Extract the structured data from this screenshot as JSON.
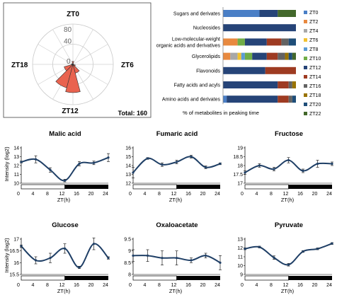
{
  "chart_data": [
    {
      "type": "polar-bar",
      "labels": {
        "top": "ZT0",
        "right": "ZT6",
        "bottom": "ZT12",
        "left": "ZT18"
      },
      "ring_ticks": [
        "0",
        "40",
        "80"
      ],
      "rmax": 80,
      "total_label": "Total: 160",
      "categories": [
        "ZT0",
        "ZT2",
        "ZT4",
        "ZT6",
        "ZT8",
        "ZT10",
        "ZT12",
        "ZT14",
        "ZT16",
        "ZT18",
        "ZT20",
        "ZT22"
      ],
      "values": [
        6,
        1,
        1,
        1,
        5,
        18,
        56,
        48,
        18,
        3,
        2,
        1
      ],
      "color": "#e9634f"
    },
    {
      "type": "stacked-bar-horizontal",
      "xlabel": "% of metabolites in peaking time",
      "categories": [
        "Sugars and derivates",
        "Nucleosides",
        "Low-molecular-weight organic acids and derivatives",
        "Glycerolipids",
        "Flavonoids",
        "Fatty acids and acyls",
        "Amino acids and derivates"
      ],
      "category_lines": [
        [
          "Sugars and derivates"
        ],
        [
          "Nucleosides"
        ],
        [
          "Low-molecular-weight",
          "organic acids and derivatives"
        ],
        [
          "Glycerolipids"
        ],
        [
          "Flavonoids"
        ],
        [
          "Fatty acids and acyls"
        ],
        [
          "Amino acids and derivates"
        ]
      ],
      "series_names": [
        "ZT0",
        "ZT2",
        "ZT4",
        "ZT6",
        "ZT8",
        "ZT10",
        "ZT12",
        "ZT14",
        "ZT16",
        "ZT18",
        "ZT20",
        "ZT22"
      ],
      "colors": [
        "#4a7fc6",
        "#e8893f",
        "#a8a8a8",
        "#f2c231",
        "#5b9bd5",
        "#70ad47",
        "#264478",
        "#9e3b22",
        "#636363",
        "#997300",
        "#1f4e79",
        "#43682b"
      ],
      "values": [
        [
          50,
          0,
          0,
          0,
          0,
          0,
          25,
          0,
          0,
          0,
          0,
          25
        ],
        [
          0,
          0,
          0,
          0,
          0,
          0,
          100,
          0,
          0,
          0,
          0,
          0
        ],
        [
          0,
          20,
          0,
          0,
          0,
          10,
          30,
          20,
          10,
          0,
          10,
          0
        ],
        [
          0,
          10,
          10,
          5,
          5,
          10,
          20,
          15,
          10,
          5,
          5,
          5
        ],
        [
          0,
          0,
          0,
          0,
          0,
          0,
          58,
          42,
          0,
          0,
          0,
          0
        ],
        [
          0,
          0,
          0,
          0,
          0,
          0,
          75,
          15,
          5,
          5,
          0,
          0
        ],
        [
          5,
          0,
          0,
          0,
          0,
          0,
          70,
          15,
          5,
          0,
          5,
          0
        ]
      ]
    },
    {
      "type": "line",
      "title": "Malic acid",
      "ylabel": "Intensity (log2)",
      "xlabel": "ZT(h)",
      "x": [
        0,
        4,
        8,
        12,
        16,
        20,
        24
      ],
      "y": [
        12.4,
        12.7,
        11.5,
        10.3,
        12.2,
        12.3,
        12.9
      ],
      "err": [
        0.1,
        0.4,
        0.25,
        0.15,
        0.25,
        0.2,
        0.45
      ],
      "ylim": [
        10,
        14
      ],
      "yticks": [
        "10",
        "11",
        "12",
        "13",
        "14"
      ],
      "xticks": [
        "0",
        "4",
        "8",
        "12",
        "16",
        "20",
        "24"
      ]
    },
    {
      "type": "line",
      "title": "Fumaric acid",
      "ylabel": "",
      "xlabel": "ZT(h)",
      "x": [
        0,
        4,
        8,
        12,
        16,
        20,
        24
      ],
      "y": [
        13.2,
        14.8,
        14.1,
        14.4,
        15.0,
        13.8,
        14.2
      ],
      "err": [
        0.6,
        0.1,
        0.2,
        0.2,
        0.15,
        0.15,
        0.1
      ],
      "ylim": [
        12,
        16
      ],
      "yticks": [
        "12",
        "13",
        "14",
        "15",
        "16"
      ],
      "xticks": [
        "0",
        "4",
        "8",
        "12",
        "16",
        "20",
        "24"
      ]
    },
    {
      "type": "line",
      "title": "Fructose",
      "ylabel": "",
      "xlabel": "ZT(h)",
      "x": [
        0,
        4,
        8,
        12,
        16,
        20,
        24
      ],
      "y": [
        17.6,
        18.0,
        17.8,
        18.3,
        17.7,
        18.1,
        18.1
      ],
      "err": [
        0.1,
        0.1,
        0.1,
        0.15,
        0.1,
        0.2,
        0.1
      ],
      "ylim": [
        17,
        19
      ],
      "yticks": [
        "17",
        "17.5",
        "18",
        "18.5",
        "19"
      ],
      "xticks": [
        "0",
        "4",
        "8",
        "12",
        "16",
        "20",
        "24"
      ]
    },
    {
      "type": "line",
      "title": "Glucose",
      "ylabel": "Intensity (log2)",
      "xlabel": "ZT(h)",
      "x": [
        0,
        4,
        8,
        12,
        16,
        20,
        24
      ],
      "y": [
        16.7,
        16.1,
        16.2,
        16.6,
        15.8,
        16.8,
        16.2
      ],
      "err": [
        0.05,
        0.15,
        0.2,
        0.2,
        0.05,
        0.25,
        0.05
      ],
      "ylim": [
        15.5,
        17
      ],
      "yticks": [
        "15.5",
        "16",
        "16.5",
        "17"
      ],
      "xticks": [
        "0",
        "4",
        "8",
        "12",
        "16",
        "20",
        "24"
      ]
    },
    {
      "type": "line",
      "title": "Oxaloacetate",
      "ylabel": "",
      "xlabel": "ZT(h)",
      "x": [
        0,
        4,
        8,
        12,
        16,
        20,
        24
      ],
      "y": [
        8.8,
        8.8,
        8.7,
        8.7,
        8.6,
        8.8,
        8.5
      ],
      "err": [
        0.25,
        0.25,
        0.3,
        0.3,
        0.1,
        0.1,
        0.3
      ],
      "ylim": [
        8,
        9.5
      ],
      "yticks": [
        "8",
        "8.5",
        "9",
        "9.5"
      ],
      "xticks": [
        "0",
        "4",
        "8",
        "12",
        "16",
        "20",
        "24"
      ]
    },
    {
      "type": "line",
      "title": "Pyruvate",
      "ylabel": "",
      "xlabel": "ZT(h)",
      "x": [
        0,
        4,
        8,
        12,
        16,
        20,
        24
      ],
      "y": [
        11.9,
        12.1,
        10.9,
        10.1,
        11.6,
        11.9,
        12.5
      ],
      "err": [
        0.1,
        0.1,
        0.2,
        0.15,
        0.1,
        0.1,
        0.1
      ],
      "ylim": [
        9,
        13
      ],
      "yticks": [
        "9",
        "10",
        "11",
        "12",
        "13"
      ],
      "xticks": [
        "0",
        "4",
        "8",
        "12",
        "16",
        "20",
        "24"
      ]
    }
  ]
}
